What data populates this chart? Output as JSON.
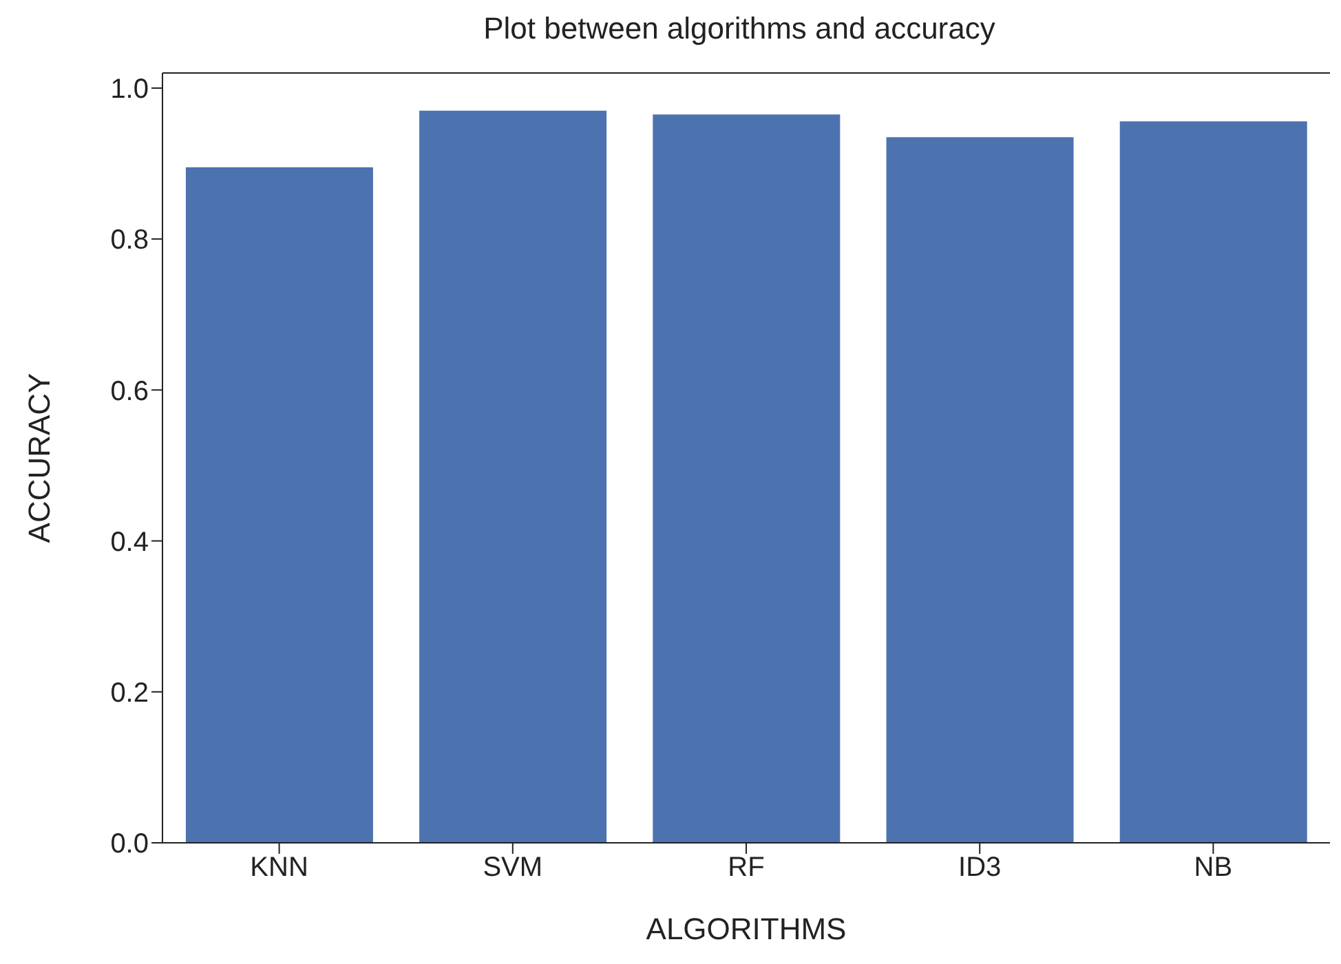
{
  "chart_data": {
    "type": "bar",
    "title": "Plot between algorithms and accuracy",
    "xlabel": "ALGORITHMS",
    "ylabel": "ACCURACY",
    "categories": [
      "KNN",
      "SVM",
      "RF",
      "ID3",
      "NB"
    ],
    "values": [
      0.895,
      0.97,
      0.965,
      0.935,
      0.956
    ],
    "color": "#4c72b0",
    "ylim": [
      0,
      1.02
    ],
    "yticks": [
      {
        "value": 0,
        "label": "0.0"
      },
      0.2,
      0.4,
      0.6,
      0.8,
      {
        "value": 1,
        "label": "1.0"
      }
    ],
    "grid": false
  }
}
